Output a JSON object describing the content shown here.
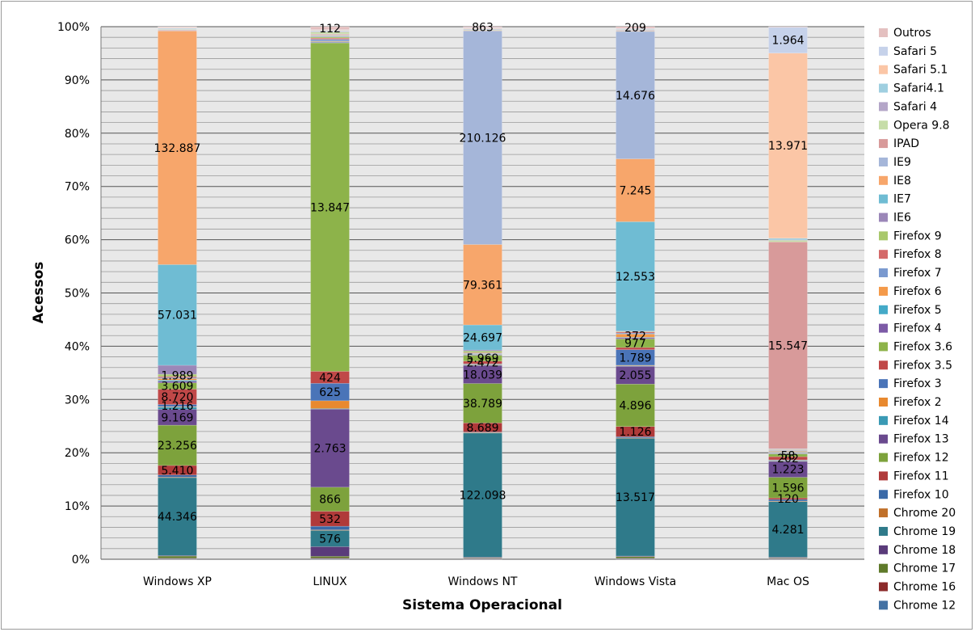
{
  "chart_data": {
    "type": "bar",
    "stacked": "percent",
    "title": "",
    "xlabel": "Sistema Operacional",
    "ylabel": "Acessos",
    "ylim": [
      0,
      100
    ],
    "y_ticks": [
      "0%",
      "10%",
      "20%",
      "30%",
      "40%",
      "50%",
      "60%",
      "70%",
      "80%",
      "90%",
      "100%"
    ],
    "grid": true,
    "legend_position": "right",
    "categories": [
      "Windows XP",
      "LINUX",
      "Windows NT",
      "Windows Vista",
      "Mac OS"
    ],
    "series": [
      {
        "name": "Chrome 12",
        "color": "#4472a4",
        "values": [
          0.1,
          0.1,
          0.1,
          0.1,
          0.1
        ]
      },
      {
        "name": "Chrome 16",
        "color": "#8b2a2a",
        "values": [
          0.1,
          0.1,
          0.1,
          0.1,
          0.1
        ]
      },
      {
        "name": "Chrome 17",
        "color": "#5f7a2a",
        "values": [
          0.4,
          0.3,
          0.1,
          0.3,
          0.1
        ]
      },
      {
        "name": "Chrome 18",
        "color": "#5a3b7a",
        "values": [
          0.1,
          1.6,
          0.1,
          0.1,
          0.1
        ]
      },
      {
        "name": "Chrome 19",
        "color": "#2f7a8a",
        "values": [
          14.7,
          2.7,
          23.3,
          21.9,
          10.5
        ]
      },
      {
        "name": "Chrome 20",
        "color": "#c0702a",
        "values": [
          0.1,
          0.1,
          0.1,
          0.1,
          0.1
        ]
      },
      {
        "name": "Firefox 10",
        "color": "#3b6aa8",
        "values": [
          0.4,
          0.6,
          0.1,
          0.2,
          0.3
        ]
      },
      {
        "name": "Firefox 11",
        "color": "#b03a3a",
        "values": [
          1.8,
          2.5,
          1.7,
          1.9,
          0.3
        ]
      },
      {
        "name": "Firefox 12",
        "color": "#7da23c",
        "values": [
          7.6,
          4.0,
          7.4,
          7.9,
          3.9
        ]
      },
      {
        "name": "Firefox 13",
        "color": "#6a4a8e",
        "values": [
          3.0,
          13.0,
          3.4,
          3.3,
          3.0
        ]
      },
      {
        "name": "Firefox 14",
        "color": "#3a9ab5",
        "values": [
          0.4,
          0.1,
          0.1,
          0.1,
          0.1
        ]
      },
      {
        "name": "Firefox 2",
        "color": "#e8892f",
        "values": [
          0.1,
          1.3,
          0.1,
          0.1,
          0.1
        ]
      },
      {
        "name": "Firefox 3",
        "color": "#4a74b8",
        "values": [
          0.4,
          2.9,
          0.1,
          2.9,
          0.1
        ]
      },
      {
        "name": "Firefox 3.5",
        "color": "#c04848",
        "values": [
          2.9,
          2.0,
          0.5,
          0.4,
          0.6
        ]
      },
      {
        "name": "Firefox 3.6",
        "color": "#8db34a",
        "values": [
          1.2,
          54.7,
          1.1,
          1.6,
          0.5
        ]
      },
      {
        "name": "Firefox 4",
        "color": "#7c5aa6",
        "values": [
          0.3,
          0.1,
          0.1,
          0.2,
          0.1
        ]
      },
      {
        "name": "Firefox 5",
        "color": "#44aac8",
        "values": [
          0.2,
          0.1,
          0.1,
          0.1,
          0.1
        ]
      },
      {
        "name": "Firefox 6",
        "color": "#f49a4a",
        "values": [
          0.3,
          0.1,
          0.1,
          0.6,
          0.1
        ]
      },
      {
        "name": "Firefox 7",
        "color": "#7a99cf",
        "values": [
          0.2,
          0.3,
          0.1,
          0.2,
          0.1
        ]
      },
      {
        "name": "Firefox 8",
        "color": "#d46a6a",
        "values": [
          0.2,
          0.2,
          0.1,
          0.2,
          0.1
        ]
      },
      {
        "name": "Firefox 9",
        "color": "#a9c86c",
        "values": [
          0.4,
          0.2,
          0.3,
          0.1,
          0.1
        ]
      },
      {
        "name": "IE6",
        "color": "#9b87b8",
        "values": [
          1.7,
          0.1,
          0.2,
          0.1,
          0.1
        ]
      },
      {
        "name": "IE7",
        "color": "#6fbcd3",
        "values": [
          19.0,
          0.1,
          4.7,
          20.3,
          0.1
        ]
      },
      {
        "name": "IE8",
        "color": "#f7a66b",
        "values": [
          44.1,
          0.1,
          15.1,
          11.7,
          0.1
        ]
      },
      {
        "name": "IE9",
        "color": "#a5b6d9",
        "values": [
          0.1,
          0.1,
          40.1,
          23.7,
          0.1
        ]
      },
      {
        "name": "IPAD",
        "color": "#d89a9a",
        "values": [
          0.1,
          0.1,
          0.1,
          0.1,
          39.1
        ]
      },
      {
        "name": "Opera 9.8",
        "color": "#c6dda8",
        "values": [
          0.1,
          0.3,
          0.1,
          0.1,
          0.3
        ]
      },
      {
        "name": "Safari 4",
        "color": "#b4a6c8",
        "values": [
          0.1,
          0.1,
          0.1,
          0.1,
          0.1
        ]
      },
      {
        "name": "Safari4.1",
        "color": "#9fcfe0",
        "values": [
          0.1,
          0.1,
          0.1,
          0.1,
          0.3
        ]
      },
      {
        "name": "Safari 5.1",
        "color": "#fbc6a6",
        "values": [
          0.1,
          0.1,
          0.1,
          0.1,
          35.0
        ]
      },
      {
        "name": "Safari 5",
        "color": "#c6d2ea",
        "values": [
          0.1,
          0.1,
          0.1,
          0.1,
          4.9
        ]
      },
      {
        "name": "Outros",
        "color": "#e4c0c0",
        "values": [
          0.1,
          0.5,
          0.2,
          0.3,
          0.1
        ]
      }
    ],
    "data_labels": [
      {
        "category": "Windows XP",
        "series": "Chrome 19",
        "text": "44.346"
      },
      {
        "category": "Windows XP",
        "series": "Firefox 11",
        "text": "5.410"
      },
      {
        "category": "Windows XP",
        "series": "Firefox 12",
        "text": "23.256"
      },
      {
        "category": "Windows XP",
        "series": "Firefox 13",
        "text": "9.169"
      },
      {
        "category": "Windows XP",
        "series": "Firefox 3",
        "text": "1.216"
      },
      {
        "category": "Windows XP",
        "series": "Firefox 3.5",
        "text": "8.720"
      },
      {
        "category": "Windows XP",
        "series": "Firefox 3.6",
        "text": "3.609"
      },
      {
        "category": "Windows XP",
        "series": "Firefox 9",
        "text": "1.989"
      },
      {
        "category": "Windows XP",
        "series": "IE7",
        "text": "57.031"
      },
      {
        "category": "Windows XP",
        "series": "IE8",
        "text": "132.887"
      },
      {
        "category": "LINUX",
        "series": "Chrome 19",
        "text": "576"
      },
      {
        "category": "LINUX",
        "series": "Firefox 11",
        "text": "532"
      },
      {
        "category": "LINUX",
        "series": "Firefox 12",
        "text": "866"
      },
      {
        "category": "LINUX",
        "series": "Firefox 13",
        "text": "2.763"
      },
      {
        "category": "LINUX",
        "series": "Firefox 3",
        "text": "625"
      },
      {
        "category": "LINUX",
        "series": "Firefox 3.5",
        "text": "424"
      },
      {
        "category": "LINUX",
        "series": "Firefox 3.6",
        "text": "13.847"
      },
      {
        "category": "LINUX",
        "series": "Outros",
        "text": "112"
      },
      {
        "category": "Windows NT",
        "series": "Chrome 19",
        "text": "122.098"
      },
      {
        "category": "Windows NT",
        "series": "Firefox 11",
        "text": "8.689"
      },
      {
        "category": "Windows NT",
        "series": "Firefox 12",
        "text": "38.789"
      },
      {
        "category": "Windows NT",
        "series": "Firefox 13",
        "text": "18.039"
      },
      {
        "category": "Windows NT",
        "series": "Firefox 3.5",
        "text": "2.472"
      },
      {
        "category": "Windows NT",
        "series": "Firefox 3.6",
        "text": "5.969"
      },
      {
        "category": "Windows NT",
        "series": "IE7",
        "text": "24.697"
      },
      {
        "category": "Windows NT",
        "series": "IE8",
        "text": "79.361"
      },
      {
        "category": "Windows NT",
        "series": "IE9",
        "text": "210.126"
      },
      {
        "category": "Windows NT",
        "series": "Outros",
        "text": "863"
      },
      {
        "category": "Windows Vista",
        "series": "Chrome 19",
        "text": "13.517"
      },
      {
        "category": "Windows Vista",
        "series": "Firefox 11",
        "text": "1.126"
      },
      {
        "category": "Windows Vista",
        "series": "Firefox 12",
        "text": "4.896"
      },
      {
        "category": "Windows Vista",
        "series": "Firefox 13",
        "text": "2.055"
      },
      {
        "category": "Windows Vista",
        "series": "Firefox 3",
        "text": "1.789"
      },
      {
        "category": "Windows Vista",
        "series": "Firefox 3.6",
        "text": "977"
      },
      {
        "category": "Windows Vista",
        "series": "Firefox 6",
        "text": "372"
      },
      {
        "category": "Windows Vista",
        "series": "IE7",
        "text": "12.553"
      },
      {
        "category": "Windows Vista",
        "series": "IE8",
        "text": "7.245"
      },
      {
        "category": "Windows Vista",
        "series": "IE9",
        "text": "14.676"
      },
      {
        "category": "Windows Vista",
        "series": "Outros",
        "text": "209"
      },
      {
        "category": "Mac OS",
        "series": "Chrome 19",
        "text": "4.281"
      },
      {
        "category": "Mac OS",
        "series": "Firefox 11",
        "text": "120"
      },
      {
        "category": "Mac OS",
        "series": "Firefox 12",
        "text": "1.596"
      },
      {
        "category": "Mac OS",
        "series": "Firefox 13",
        "text": "1.223"
      },
      {
        "category": "Mac OS",
        "series": "Firefox 3.5",
        "text": "202"
      },
      {
        "category": "Mac OS",
        "series": "Firefox 3.6",
        "text": "58"
      },
      {
        "category": "Mac OS",
        "series": "IPAD",
        "text": "15.547"
      },
      {
        "category": "Mac OS",
        "series": "Safari 5.1",
        "text": "13.971"
      },
      {
        "category": "Mac OS",
        "series": "Safari 5",
        "text": "1.964"
      }
    ]
  }
}
